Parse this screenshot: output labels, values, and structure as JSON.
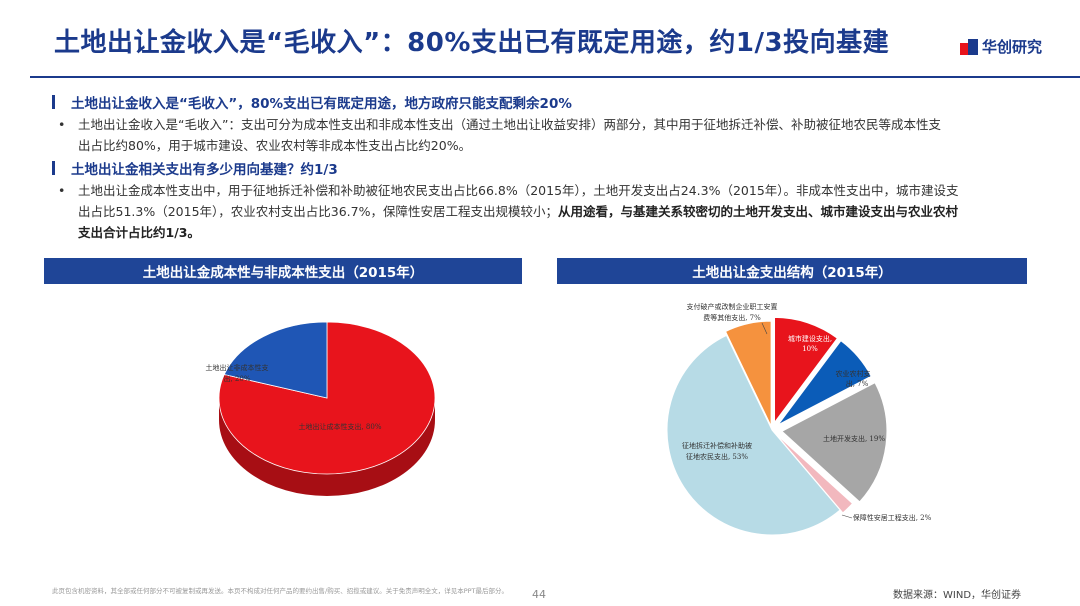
{
  "header": {
    "title": "土地出让金收入是“毛收入”：80%支出已有既定用途，约1/3投向基建",
    "logo_text": "华创研究"
  },
  "sections": [
    {
      "heading": "土地出让金收入是“毛收入”，80%支出已有既定用途，地方政府只能支配剩余20%",
      "bullet_lines": [
        "土地出让金收入是“毛收入”：支出可分为成本性支出和非成本性支出（通过土地出让收益安排）两部分，其中用于征地拆迁补偿、补助被征地农民等成本性支",
        "出占比约80%，用于城市建设、农业农村等非成本性支出占比约20%。"
      ]
    },
    {
      "heading": "土地出让金相关支出有多少用向基建？约1/3",
      "bullet_lines": [
        "土地出让金成本性支出中，用于征地拆迁补偿和补助被征地农民支出占比66.8%（2015年），土地开发支出占24.3%（2015年）。非成本性支出中，城市建设支",
        "出占比51.3%（2015年），农业农村支出占比36.7%，保障性安居工程支出规模较小；"
      ],
      "bold_part1": "从用途看，与基建关系较密切的土地开发支出、城市建设支出与农业农村",
      "bold_part2": "支出合计占比约1/3。"
    }
  ],
  "chart_data": [
    {
      "type": "pie",
      "title": "土地出让金成本性与非成本性支出（2015年）",
      "slices": [
        {
          "label": "土地出让金成本性支出, 80%",
          "value": 80,
          "color": "#e8141c"
        },
        {
          "label": "土地出让金非成本性支出, 20%",
          "value": 20,
          "color": "#1f56b5"
        }
      ]
    },
    {
      "type": "pie",
      "title": "土地出让金支出结构（2015年）",
      "slices": [
        {
          "label": "城市建设支出, 10%",
          "value": 10,
          "color": "#e8141c"
        },
        {
          "label": "农业农村支出, 7%",
          "value": 7,
          "color": "#0b5cb8"
        },
        {
          "label": "土地开发支出, 19%",
          "value": 19,
          "color": "#a6a6a6"
        },
        {
          "label": "保障性安居工程支出, 2%",
          "value": 2,
          "color": "#f2b8be"
        },
        {
          "label": "征地拆迁补偿和补助被征地农民支出, 53%",
          "value": 53,
          "color": "#b7dbe6"
        },
        {
          "label": "支付破产或改制企业职工安置费等其他支出, 7%",
          "value": 7,
          "color": "#f5923e"
        }
      ]
    }
  ],
  "labels": {
    "c1_non_l1": "土地出让非成本性支",
    "c1_non_l2": "出, 20%",
    "c1_cost": "土地出让成本性支出, 80%",
    "c2_city_l1": "城市建设支出,",
    "c2_city_l2": "10%",
    "c2_agri_l1": "农业农村支",
    "c2_agri_l2": "出, 7%",
    "c2_land": "土地开发支出, 19%",
    "c2_house": "保障性安居工程支出, 2%",
    "c2_comp_l1": "征地拆迁补偿和补助被",
    "c2_comp_l2": "征地农民支出, 53%",
    "c2_other_l1": "支付破产或改制企业职工安置",
    "c2_other_l2": "费等其他支出, 7%"
  },
  "footer": {
    "disclaimer": "此页包含机密资料，其全部或任何部分不可被复制或再发送。本页不构成对任何产品的要约出售/购买、招揽或建议。关于免责声明全文，详见本PPT最后部分。",
    "page": "44",
    "source": "数据来源：WIND，华创证券"
  }
}
